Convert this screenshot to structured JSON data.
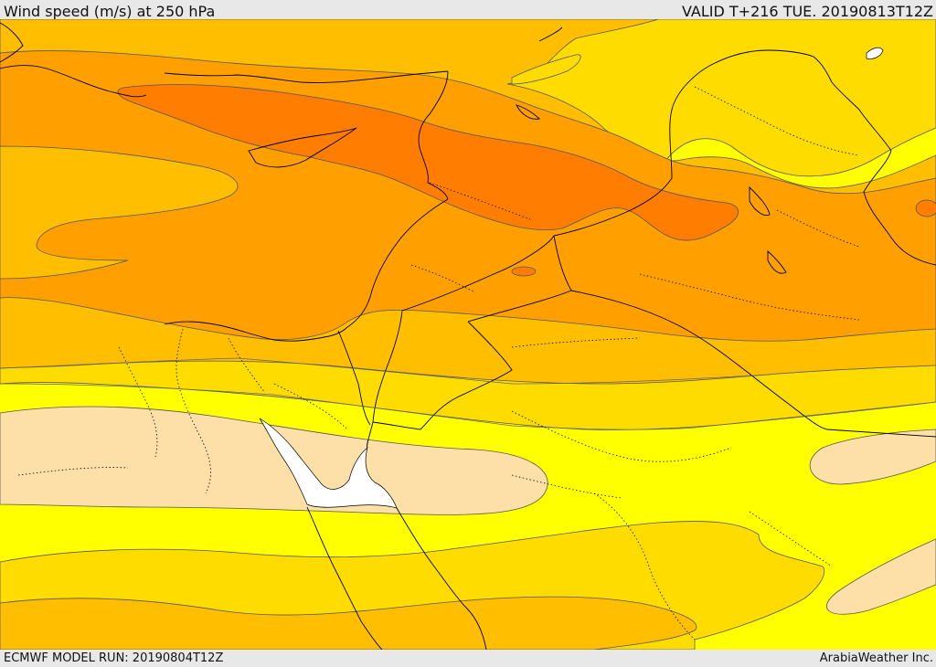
{
  "header": {
    "title": "Wind speed (m/s) at 250 hPa",
    "valid": "VALID T+216 TUE. 20190813T12Z"
  },
  "footer": {
    "model_run": "ECMWF MODEL RUN: 20190804T12Z",
    "credit": "ArabiaWeather Inc."
  },
  "colors": {
    "band_pale": "#fce0a8",
    "band_yellow": "#ffff00",
    "band_gold": "#ffdc00",
    "band_amber": "#ffbe00",
    "band_orange": "#ffa000",
    "band_dark_orange": "#ff7d00",
    "sea_white": "#ffffff",
    "border_line": "#000000",
    "contour_line": "#555555"
  }
}
